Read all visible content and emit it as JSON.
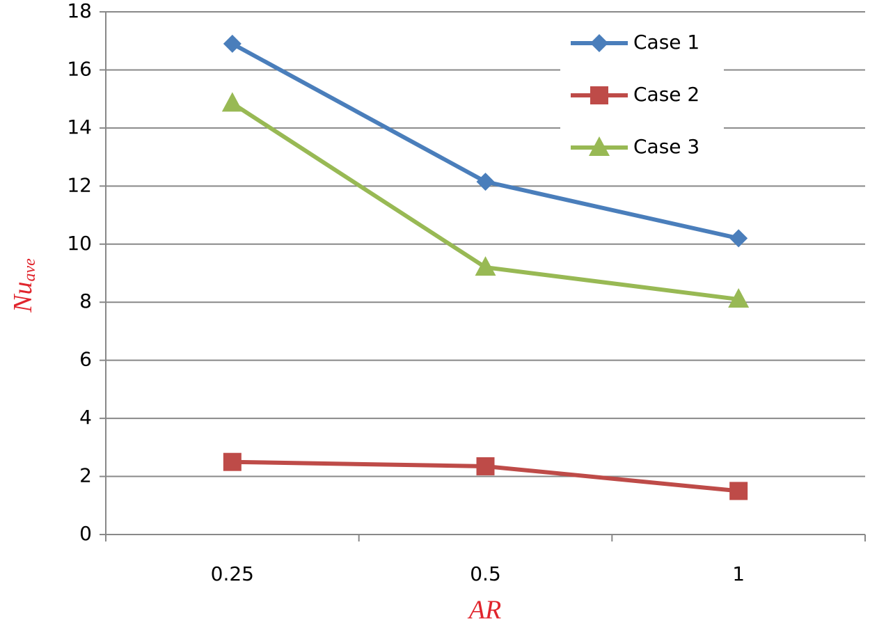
{
  "chart_data": {
    "type": "line",
    "categories": [
      "0.25",
      "0.5",
      "1"
    ],
    "series": [
      {
        "name": "Case 1",
        "color": "#4a7ebb",
        "marker": "diamond",
        "values": [
          16.9,
          12.15,
          10.2
        ]
      },
      {
        "name": "Case 2",
        "color": "#be4b48",
        "marker": "square",
        "values": [
          2.5,
          2.35,
          1.5
        ]
      },
      {
        "name": "Case 3",
        "color": "#98b954",
        "marker": "triangle",
        "values": [
          14.85,
          9.2,
          8.1
        ]
      }
    ],
    "x_label": "AR",
    "y_label": {
      "main": "Nu",
      "sub": "ave"
    },
    "ylim": [
      0,
      18
    ],
    "yticks": [
      0,
      2,
      4,
      6,
      8,
      10,
      12,
      14,
      16,
      18
    ],
    "grid": true,
    "legend": "top-right"
  }
}
